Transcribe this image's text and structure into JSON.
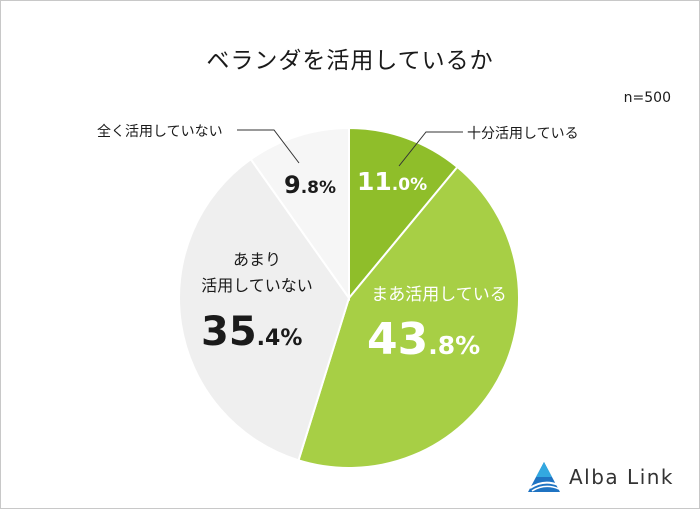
{
  "chart_data": {
    "type": "pie",
    "title": "ベランダを活用しているか",
    "note": "n=500",
    "slices": [
      {
        "label": "十分活用している",
        "value": 11.0,
        "int": "11",
        "dec": ".0%",
        "color": "#8fbe2a"
      },
      {
        "label": "まあ活用している",
        "value": 43.8,
        "int": "43",
        "dec": ".8%",
        "color": "#a7cf45"
      },
      {
        "label": "あまり活用していない",
        "label_lines": [
          "あまり",
          "活用していない"
        ],
        "value": 35.4,
        "int": "35",
        "dec": ".4%",
        "color": "#efefef"
      },
      {
        "label": "全く活用していない",
        "value": 9.8,
        "int": "9",
        "dec": ".8%",
        "color": "#f6f6f6"
      }
    ]
  },
  "brand": {
    "name": "Alba Link"
  }
}
